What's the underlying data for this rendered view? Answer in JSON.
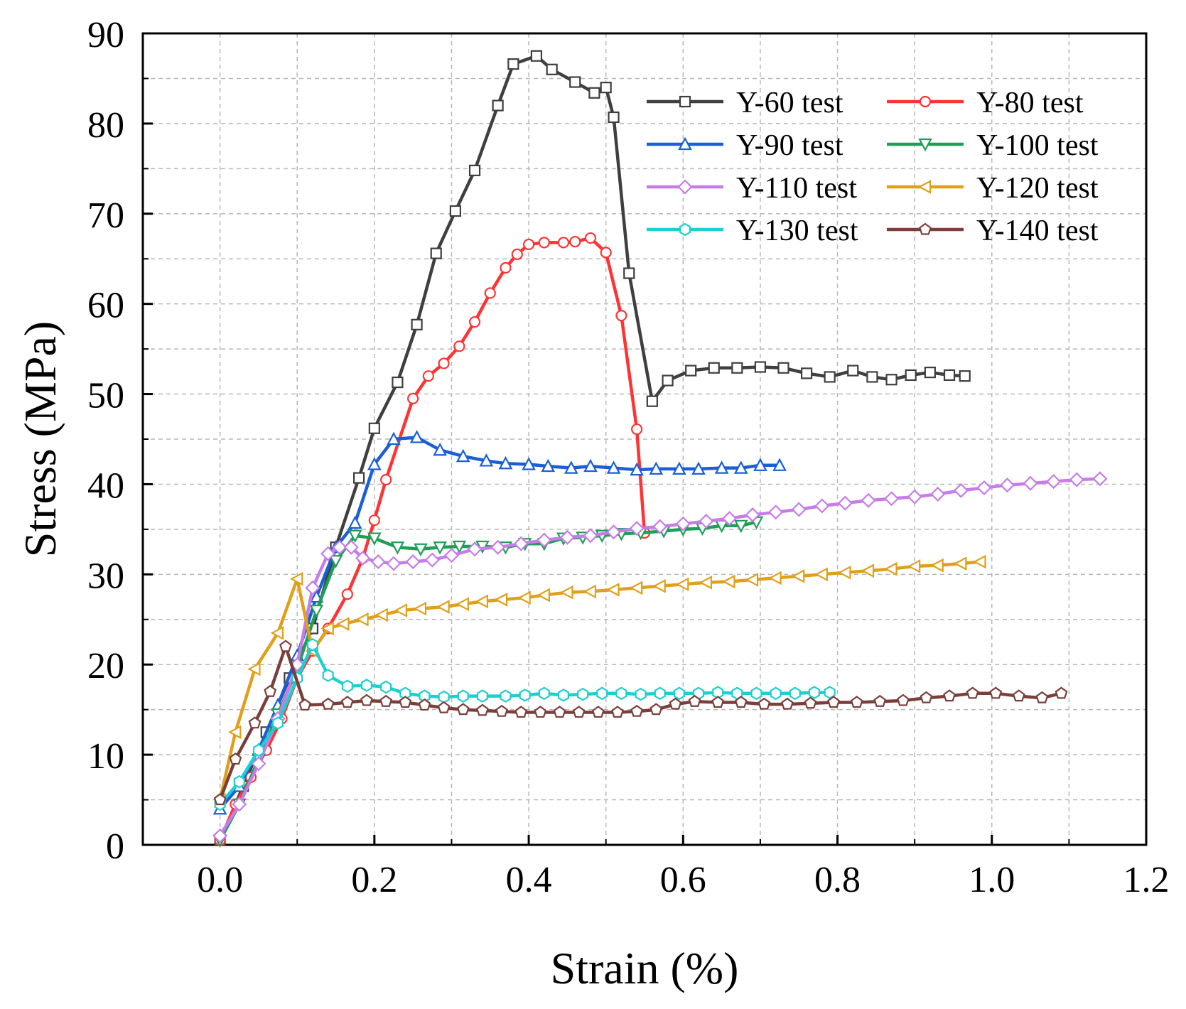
{
  "chart_data": {
    "type": "line",
    "title": "",
    "xlabel": "Strain (%)",
    "ylabel": "Stress (MPa)",
    "xlim": [
      -0.1,
      1.2
    ],
    "ylim": [
      0,
      90
    ],
    "xticks": [
      0.0,
      0.2,
      0.4,
      0.6,
      0.8,
      1.0,
      1.2
    ],
    "yticks": [
      0,
      10,
      20,
      30,
      40,
      50,
      60,
      70,
      80,
      90
    ],
    "xtick_labels": [
      "0.0",
      "0.2",
      "0.4",
      "0.6",
      "0.8",
      "1.0",
      "1.2"
    ],
    "ytick_labels": [
      "0",
      "10",
      "20",
      "30",
      "40",
      "50",
      "60",
      "70",
      "80",
      "90"
    ],
    "grid": true,
    "legend_position": "top-right",
    "series": [
      {
        "name": "Y-60 test",
        "color": "#3f3f3f",
        "marker": "square",
        "x": [
          0.0,
          0.03,
          0.06,
          0.09,
          0.12,
          0.15,
          0.18,
          0.2,
          0.23,
          0.255,
          0.28,
          0.305,
          0.33,
          0.36,
          0.38,
          0.41,
          0.43,
          0.46,
          0.485,
          0.5,
          0.51,
          0.53,
          0.56,
          0.58,
          0.61,
          0.64,
          0.67,
          0.7,
          0.73,
          0.76,
          0.79,
          0.82,
          0.845,
          0.87,
          0.895,
          0.92,
          0.945,
          0.965
        ],
        "y": [
          0.5,
          6.5,
          12.5,
          18.5,
          24.0,
          33.0,
          40.7,
          46.2,
          51.3,
          57.7,
          65.6,
          70.3,
          74.8,
          82.0,
          86.6,
          87.5,
          86.0,
          84.6,
          83.4,
          84.0,
          80.7,
          63.4,
          49.2,
          51.5,
          52.6,
          52.9,
          52.9,
          53.0,
          52.9,
          52.3,
          51.9,
          52.6,
          51.9,
          51.6,
          52.1,
          52.4,
          52.1,
          52.0
        ]
      },
      {
        "name": "Y-80 test",
        "color": "#ff3333",
        "marker": "circle",
        "x": [
          0.0,
          0.02,
          0.04,
          0.06,
          0.08,
          0.1,
          0.12,
          0.14,
          0.165,
          0.185,
          0.2,
          0.215,
          0.25,
          0.27,
          0.29,
          0.31,
          0.33,
          0.35,
          0.37,
          0.385,
          0.4,
          0.42,
          0.445,
          0.46,
          0.48,
          0.5,
          0.52,
          0.54,
          0.55
        ],
        "y": [
          0.5,
          4.5,
          7.5,
          10.5,
          14.0,
          18.5,
          21.5,
          24.0,
          27.8,
          31.8,
          36.0,
          40.5,
          49.5,
          52.0,
          53.4,
          55.3,
          58.0,
          61.2,
          64.0,
          65.5,
          66.6,
          66.8,
          66.8,
          66.9,
          67.3,
          65.7,
          58.7,
          46.1,
          34.6
        ]
      },
      {
        "name": "Y-90 test",
        "color": "#1a5fd6",
        "marker": "triangle-up",
        "x": [
          0.0,
          0.025,
          0.05,
          0.075,
          0.1,
          0.125,
          0.15,
          0.175,
          0.2,
          0.225,
          0.255,
          0.285,
          0.315,
          0.345,
          0.37,
          0.4,
          0.425,
          0.455,
          0.48,
          0.51,
          0.54,
          0.565,
          0.595,
          0.62,
          0.65,
          0.675,
          0.7,
          0.725
        ],
        "y": [
          4.0,
          6.5,
          10.5,
          15.5,
          21.0,
          27.5,
          33.0,
          35.7,
          42.2,
          45.0,
          45.2,
          43.8,
          43.1,
          42.6,
          42.3,
          42.2,
          42.0,
          41.8,
          42.0,
          41.8,
          41.6,
          41.7,
          41.7,
          41.7,
          41.8,
          41.8,
          42.1,
          42.1
        ]
      },
      {
        "name": "Y-100 test",
        "color": "#1e9e57",
        "marker": "triangle-down",
        "x": [
          0.0,
          0.025,
          0.05,
          0.075,
          0.1,
          0.125,
          0.15,
          0.175,
          0.2,
          0.23,
          0.26,
          0.285,
          0.31,
          0.34,
          0.37,
          0.395,
          0.42,
          0.445,
          0.47,
          0.495,
          0.52,
          0.545,
          0.575,
          0.6,
          0.625,
          0.65,
          0.675,
          0.695
        ],
        "y": [
          0.5,
          4.5,
          9.5,
          14.5,
          19.5,
          26.0,
          31.5,
          34.3,
          34.0,
          33.0,
          32.8,
          33.0,
          33.1,
          33.1,
          33.0,
          33.4,
          33.4,
          34.0,
          34.1,
          34.3,
          34.5,
          34.6,
          34.8,
          35.0,
          35.1,
          35.4,
          35.4,
          35.8
        ]
      },
      {
        "name": "Y-110 test",
        "color": "#c77ce8",
        "marker": "diamond",
        "x": [
          0.0,
          0.025,
          0.05,
          0.075,
          0.1,
          0.12,
          0.14,
          0.155,
          0.17,
          0.185,
          0.205,
          0.225,
          0.25,
          0.275,
          0.3,
          0.33,
          0.36,
          0.39,
          0.42,
          0.45,
          0.48,
          0.51,
          0.54,
          0.57,
          0.6,
          0.63,
          0.66,
          0.69,
          0.72,
          0.75,
          0.78,
          0.81,
          0.84,
          0.87,
          0.9,
          0.93,
          0.96,
          0.99,
          1.02,
          1.05,
          1.08,
          1.11,
          1.14
        ],
        "y": [
          1.0,
          4.5,
          9.0,
          14.0,
          20.0,
          28.5,
          32.3,
          33.0,
          33.0,
          31.8,
          31.4,
          31.2,
          31.4,
          31.6,
          32.1,
          32.8,
          33.0,
          33.4,
          33.8,
          34.1,
          34.3,
          34.7,
          35.1,
          35.3,
          35.6,
          35.9,
          36.2,
          36.6,
          36.9,
          37.2,
          37.6,
          37.9,
          38.2,
          38.4,
          38.6,
          38.9,
          39.3,
          39.6,
          39.9,
          40.1,
          40.3,
          40.5,
          40.6
        ]
      },
      {
        "name": "Y-120 test",
        "color": "#e0a01a",
        "marker": "triangle-left",
        "x": [
          0.0,
          0.02,
          0.045,
          0.075,
          0.1,
          0.12,
          0.14,
          0.16,
          0.185,
          0.21,
          0.235,
          0.26,
          0.29,
          0.315,
          0.34,
          0.365,
          0.395,
          0.42,
          0.45,
          0.48,
          0.51,
          0.54,
          0.57,
          0.6,
          0.63,
          0.66,
          0.69,
          0.72,
          0.75,
          0.78,
          0.81,
          0.84,
          0.87,
          0.9,
          0.93,
          0.96,
          0.985
        ],
        "y": [
          5.0,
          12.5,
          19.5,
          23.5,
          29.5,
          21.5,
          24.0,
          24.5,
          25.0,
          25.5,
          26.0,
          26.2,
          26.4,
          26.7,
          27.0,
          27.2,
          27.4,
          27.7,
          28.0,
          28.1,
          28.3,
          28.5,
          28.7,
          28.9,
          29.1,
          29.2,
          29.4,
          29.6,
          29.8,
          30.0,
          30.2,
          30.4,
          30.6,
          30.9,
          31.0,
          31.2,
          31.4
        ]
      },
      {
        "name": "Y-130 test",
        "color": "#1fcfcf",
        "marker": "hexagon",
        "x": [
          0.0,
          0.025,
          0.05,
          0.075,
          0.1,
          0.12,
          0.14,
          0.165,
          0.19,
          0.215,
          0.24,
          0.265,
          0.29,
          0.315,
          0.34,
          0.37,
          0.395,
          0.42,
          0.445,
          0.47,
          0.495,
          0.52,
          0.545,
          0.57,
          0.595,
          0.62,
          0.645,
          0.67,
          0.695,
          0.72,
          0.745,
          0.77,
          0.79
        ],
        "y": [
          4.5,
          7.0,
          10.5,
          13.5,
          18.5,
          22.2,
          18.8,
          17.6,
          17.7,
          17.5,
          16.8,
          16.5,
          16.4,
          16.5,
          16.5,
          16.5,
          16.6,
          16.8,
          16.6,
          16.7,
          16.8,
          16.8,
          16.7,
          16.8,
          16.8,
          16.8,
          16.9,
          16.8,
          16.8,
          16.8,
          16.8,
          16.9,
          16.9
        ]
      },
      {
        "name": "Y-140 test",
        "color": "#7b3f3a",
        "marker": "pentagon",
        "x": [
          0.0,
          0.02,
          0.045,
          0.065,
          0.085,
          0.11,
          0.14,
          0.165,
          0.19,
          0.215,
          0.24,
          0.265,
          0.29,
          0.315,
          0.34,
          0.365,
          0.39,
          0.415,
          0.44,
          0.465,
          0.49,
          0.515,
          0.54,
          0.565,
          0.59,
          0.615,
          0.645,
          0.675,
          0.705,
          0.735,
          0.765,
          0.795,
          0.825,
          0.855,
          0.885,
          0.915,
          0.945,
          0.975,
          1.005,
          1.035,
          1.065,
          1.09
        ],
        "y": [
          5.0,
          9.5,
          13.5,
          17.0,
          22.0,
          15.5,
          15.6,
          15.8,
          16.0,
          15.9,
          15.8,
          15.5,
          15.2,
          15.0,
          14.9,
          14.8,
          14.7,
          14.7,
          14.7,
          14.7,
          14.7,
          14.7,
          14.8,
          15.0,
          15.6,
          15.9,
          15.8,
          15.8,
          15.6,
          15.6,
          15.7,
          15.8,
          15.8,
          15.9,
          16.0,
          16.3,
          16.5,
          16.8,
          16.8,
          16.5,
          16.3,
          16.8
        ]
      }
    ]
  }
}
